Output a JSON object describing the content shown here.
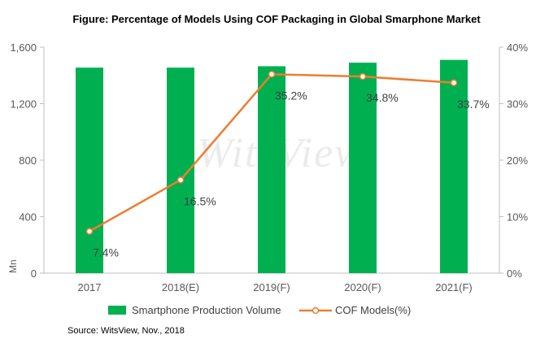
{
  "chart_data": {
    "type": "bar",
    "title": "Figure: Percentage of Models Using COF Packaging  in Global Smarphone Market",
    "categories": [
      "2017",
      "2018(E)",
      "2019(F)",
      "2020(F)",
      "2021(F)"
    ],
    "series": [
      {
        "name": "Smartphone Production Volume",
        "type": "bar",
        "axis": "left",
        "color": "#00b050",
        "values": [
          1455,
          1455,
          1465,
          1490,
          1510
        ]
      },
      {
        "name": "COF Models(%)",
        "type": "line",
        "axis": "right",
        "color": "#ed7d31",
        "marker_fill": "#ffffff",
        "values": [
          7.4,
          16.5,
          35.2,
          34.8,
          33.7
        ],
        "data_labels": [
          "7.4%",
          "16.5%",
          "35.2%",
          "34.8%",
          "33.7%"
        ]
      }
    ],
    "ylabel": "Mn",
    "ylim": [
      0,
      1600
    ],
    "yticks": [
      "0",
      "400",
      "800",
      "1,200",
      "1,600"
    ],
    "y2lim": [
      0,
      40
    ],
    "y2ticks": [
      "0%",
      "10%",
      "20%",
      "30%",
      "40%"
    ],
    "grid": false,
    "legend": "bottom",
    "watermark": "WitsView",
    "source": "Source: WitsView, Nov., 2018"
  }
}
